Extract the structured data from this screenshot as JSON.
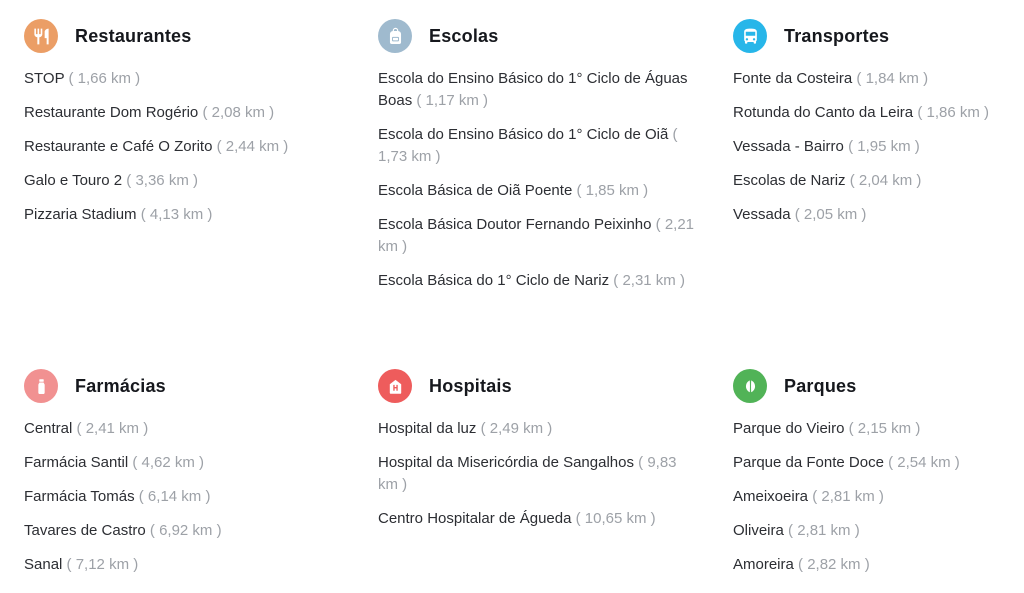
{
  "colors": {
    "page_background": "#ffffff",
    "title_text": "#16181d",
    "item_name_text": "#2c2e33",
    "item_distance_text": "#9da1a7",
    "restaurantes_icon_bg": "#eb9e66",
    "escolas_icon_bg": "#9fbace",
    "transportes_icon_bg": "#27b6e9",
    "farmacias_icon_bg": "#f19191",
    "hospitais_icon_bg": "#ee5c5c",
    "parques_icon_bg": "#51b357"
  },
  "sections": [
    {
      "id": "restaurantes",
      "title": "Restaurantes",
      "icon": "fork-knife-icon",
      "icon_bg": "#eb9e66",
      "items": [
        {
          "name": "STOP",
          "distance": "( 1,66 km )"
        },
        {
          "name": "Restaurante Dom Rogério",
          "distance": "( 2,08 km )"
        },
        {
          "name": "Restaurante e Café O Zorito",
          "distance": "( 2,44 km )"
        },
        {
          "name": "Galo e Touro 2",
          "distance": "( 3,36 km )"
        },
        {
          "name": "Pizzaria Stadium",
          "distance": "( 4,13 km )"
        }
      ]
    },
    {
      "id": "escolas",
      "title": "Escolas",
      "icon": "backpack-icon",
      "icon_bg": "#9fbace",
      "items": [
        {
          "name": "Escola do Ensino Básico do 1° Ciclo de Águas Boas",
          "distance": "( 1,17 km )"
        },
        {
          "name": "Escola do Ensino Básico do 1° Ciclo de Oiã",
          "distance": "( 1,73 km )"
        },
        {
          "name": "Escola Básica de Oiã Poente",
          "distance": "( 1,85 km )"
        },
        {
          "name": "Escola Básica Doutor Fernando Peixinho",
          "distance": "( 2,21 km )"
        },
        {
          "name": "Escola Básica do 1° Ciclo de Nariz",
          "distance": "( 2,31 km )"
        }
      ]
    },
    {
      "id": "transportes",
      "title": "Transportes",
      "icon": "bus-icon",
      "icon_bg": "#27b6e9",
      "items": [
        {
          "name": "Fonte da Costeira",
          "distance": "( 1,84 km )"
        },
        {
          "name": "Rotunda do Canto da Leira",
          "distance": "( 1,86 km )"
        },
        {
          "name": "Vessada - Bairro",
          "distance": "( 1,95 km )"
        },
        {
          "name": "Escolas de Nariz",
          "distance": "( 2,04 km )"
        },
        {
          "name": "Vessada",
          "distance": "( 2,05 km )"
        }
      ]
    },
    {
      "id": "farmacias",
      "title": "Farmácias",
      "icon": "medicine-bottle-icon",
      "icon_bg": "#f19191",
      "items": [
        {
          "name": "Central",
          "distance": "( 2,41 km )"
        },
        {
          "name": "Farmácia Santil",
          "distance": "( 4,62 km )"
        },
        {
          "name": "Farmácia Tomás",
          "distance": "( 6,14 km )"
        },
        {
          "name": "Tavares de Castro",
          "distance": "( 6,92 km )"
        },
        {
          "name": "Sanal",
          "distance": "( 7,12 km )"
        }
      ]
    },
    {
      "id": "hospitais",
      "title": "Hospitais",
      "icon": "hospital-icon",
      "icon_bg": "#ee5c5c",
      "items": [
        {
          "name": "Hospital da luz",
          "distance": "( 2,49 km )"
        },
        {
          "name": "Hospital da Misericórdia de Sangalhos",
          "distance": "( 9,83 km )"
        },
        {
          "name": "Centro Hospitalar de Águeda",
          "distance": "( 10,65 km )"
        }
      ]
    },
    {
      "id": "parques",
      "title": "Parques",
      "icon": "leaves-icon",
      "icon_bg": "#51b357",
      "items": [
        {
          "name": "Parque do Vieiro",
          "distance": "( 2,15 km )"
        },
        {
          "name": "Parque da Fonte Doce",
          "distance": "( 2,54 km )"
        },
        {
          "name": "Ameixoeira",
          "distance": "( 2,81 km )"
        },
        {
          "name": "Oliveira",
          "distance": "( 2,81 km )"
        },
        {
          "name": "Amoreira",
          "distance": "( 2,82 km )"
        }
      ]
    }
  ]
}
